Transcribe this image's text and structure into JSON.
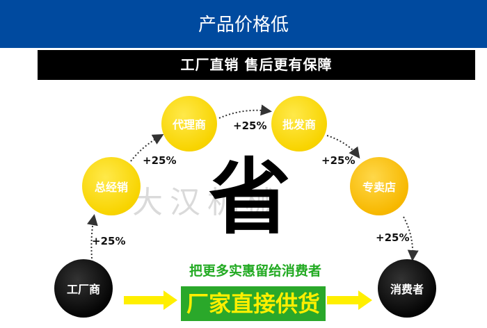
{
  "header": {
    "title": "产品价格低"
  },
  "banner": {
    "text": "工厂直销  售后更有保障"
  },
  "nodes": [
    "工厂商",
    "总经销",
    "代理商",
    "批发商",
    "专卖店",
    "消费者"
  ],
  "markup": "+25%",
  "center": {
    "char": "省",
    "slogan": "把更多实惠留给消费者",
    "box": "厂家直接供货"
  },
  "watermark": "大汉机械 DAHAN",
  "colors": {
    "header": "#004a9f",
    "yellow": "#f8d400",
    "green": "#2aa82a",
    "box_text": "#ffef00"
  }
}
